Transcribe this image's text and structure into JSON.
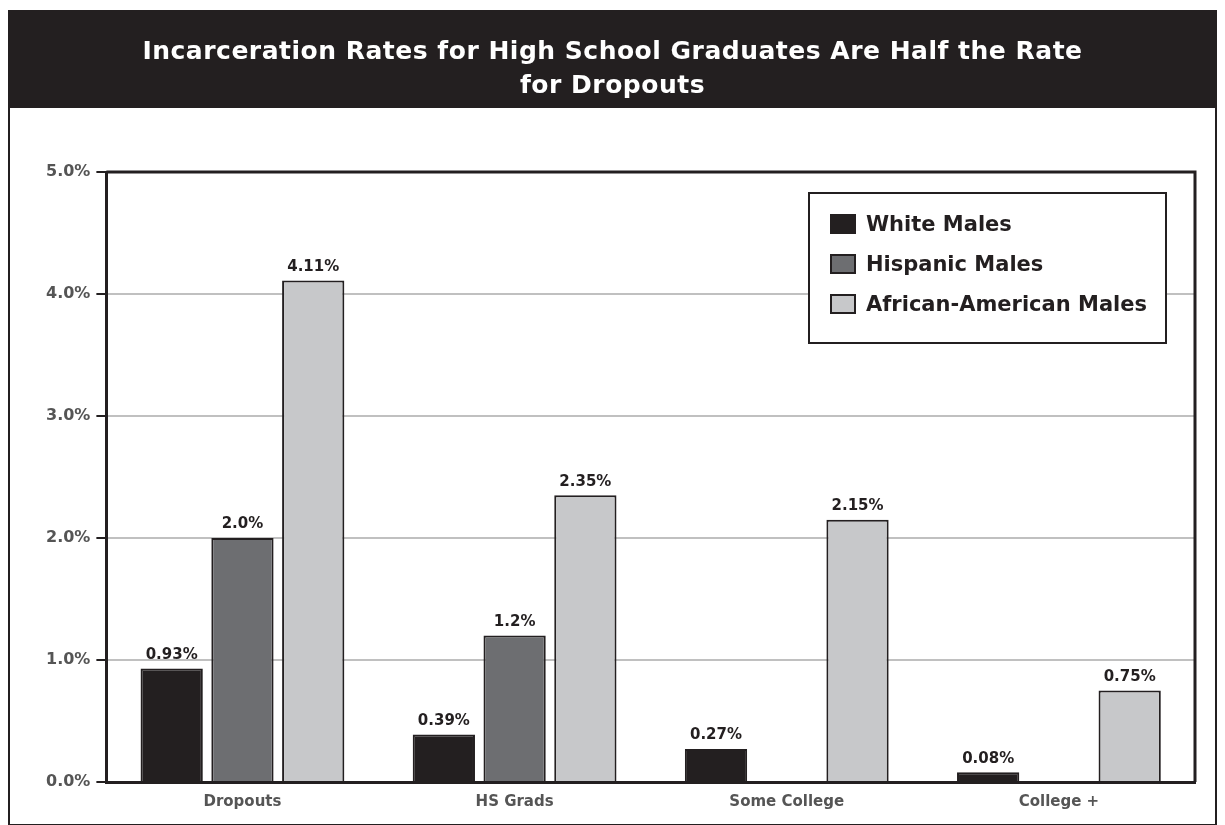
{
  "chart_data": {
    "type": "bar",
    "title": "Incarceration Rates for  High School Graduates Are Half the Rate for Dropouts",
    "categories": [
      "Dropouts",
      "HS Grads",
      "Some College",
      "College +"
    ],
    "series": [
      {
        "name": "White Males",
        "color": "#231f20",
        "values": [
          0.93,
          0.39,
          0.27,
          0.08
        ],
        "value_labels": [
          "0.93%",
          "0.39%",
          "0.27%",
          "0.08%"
        ]
      },
      {
        "name": "Hispanic Males",
        "color": "#6d6e71",
        "values": [
          2.0,
          1.2,
          null,
          null
        ],
        "value_labels": [
          "2.0%",
          "1.2%",
          null,
          null
        ]
      },
      {
        "name": "African-American Males",
        "color": "#c7c8ca",
        "values": [
          4.11,
          2.35,
          2.15,
          0.75
        ],
        "value_labels": [
          "4.11%",
          "2.35%",
          "2.15%",
          "0.75%"
        ]
      }
    ],
    "ylim": [
      0,
      5
    ],
    "yticks": [
      {
        "value": 0,
        "label": "0.0%"
      },
      {
        "value": 1,
        "label": "1.0%"
      },
      {
        "value": 2,
        "label": "2.0%"
      },
      {
        "value": 3,
        "label": "3.0%"
      },
      {
        "value": 4,
        "label": "4.0%"
      },
      {
        "value": 5,
        "label": "5.0%"
      }
    ],
    "grid": "y",
    "legend": "top right"
  }
}
